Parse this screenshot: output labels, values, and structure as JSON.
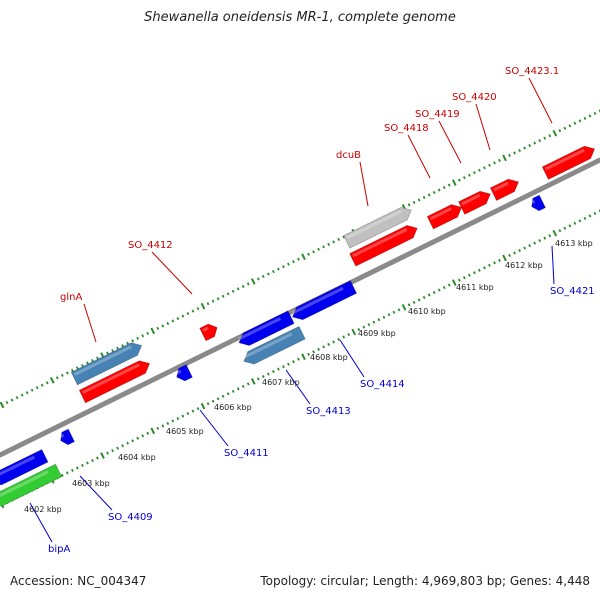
{
  "title": "Shewanella oneidensis MR-1, complete genome",
  "footer": {
    "accession": "Accession: NC_004347",
    "summary": "Topology: circular; Length: 4,969,803 bp; Genes: 4,448"
  },
  "colors": {
    "forward_gene": "#ff0000",
    "reverse_gene": "#0000ee",
    "rna_gene": "#4682b4",
    "pseudo_gene": "#c0c0c0",
    "other_gene": "#33cc33",
    "forward_label": "#cc0000",
    "reverse_label": "#0000cc",
    "backbone": "#8a8a8a",
    "tick": "#2e8b2e"
  },
  "tick_labels": [
    "4602 kbp",
    "4603 kbp",
    "4604 kbp",
    "4605 kbp",
    "4606 kbp",
    "4607 kbp",
    "4608 kbp",
    "4609 kbp",
    "4610 kbp",
    "4611 kbp",
    "4612 kbp",
    "4613 kbp"
  ],
  "forward_labels": [
    "glnA",
    "SO_4412",
    "dcuB",
    "SO_4418",
    "SO_4419",
    "SO_4420",
    "SO_4423.1"
  ],
  "reverse_labels": [
    "bipA",
    "SO_4409",
    "SO_4411",
    "SO_4413",
    "SO_4414",
    "SO_4421"
  ]
}
